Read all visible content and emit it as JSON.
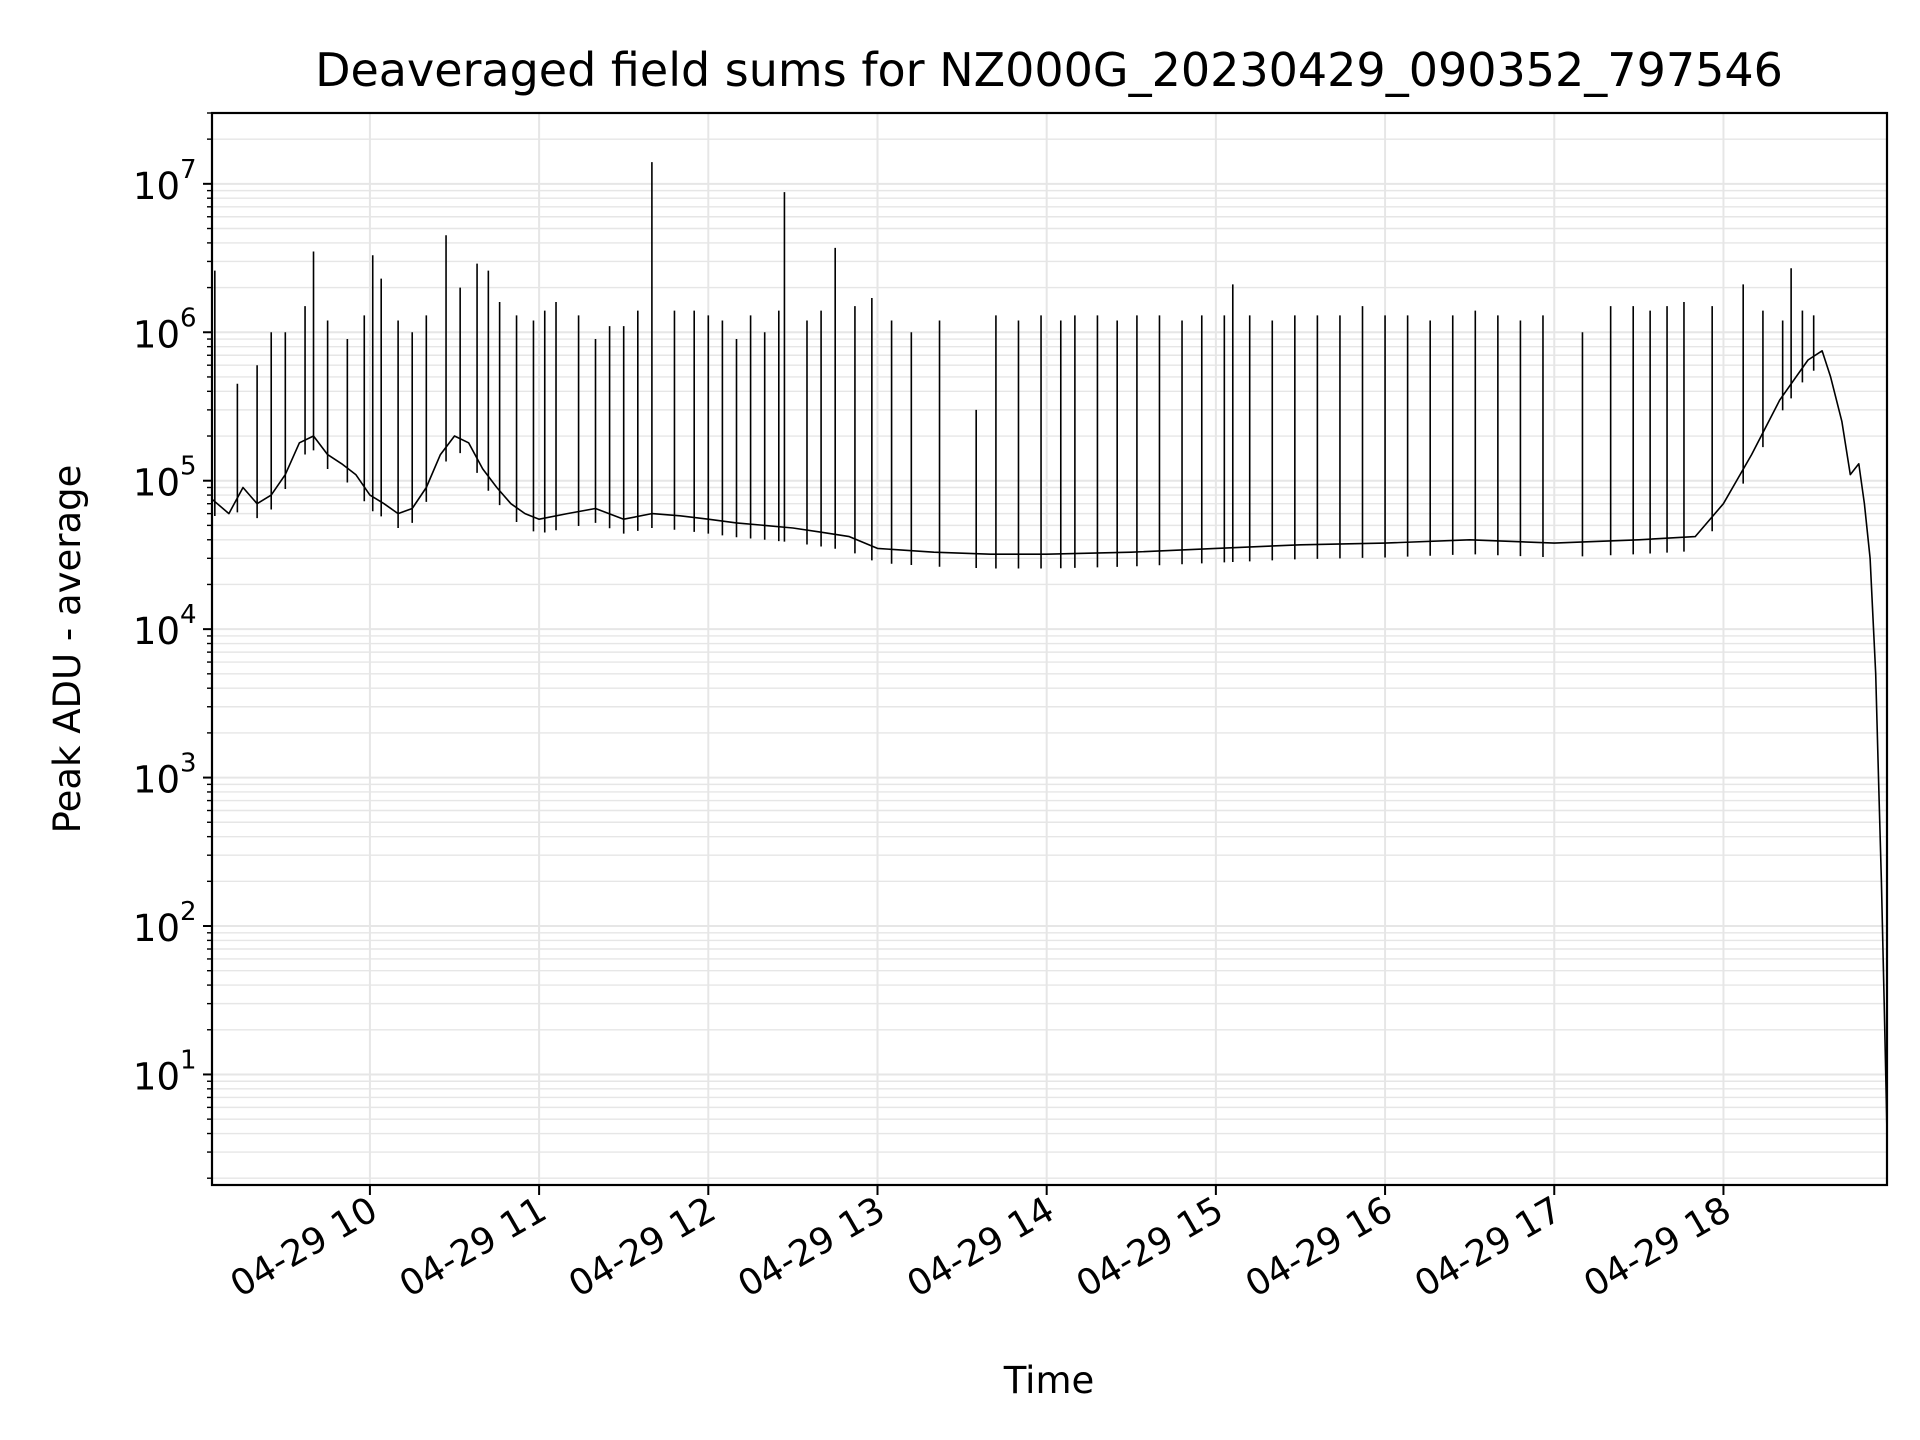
{
  "chart_data": {
    "type": "line",
    "title": "Deaveraged field sums for NZ000G_20230429_090352_797546",
    "xlabel": "Time",
    "ylabel": "Peak ADU - average",
    "x_scale": "time",
    "y_scale": "log",
    "xlim": [
      "2023-04-29 09:04",
      "2023-04-29 18:58"
    ],
    "ylim": [
      1.8,
      30000000
    ],
    "grid": true,
    "line_color": "#000000",
    "grid_color": "#e6e6e6",
    "x_ticks": [
      {
        "value": "2023-04-29 10:00",
        "label": "04-29 10"
      },
      {
        "value": "2023-04-29 11:00",
        "label": "04-29 11"
      },
      {
        "value": "2023-04-29 12:00",
        "label": "04-29 12"
      },
      {
        "value": "2023-04-29 13:00",
        "label": "04-29 13"
      },
      {
        "value": "2023-04-29 14:00",
        "label": "04-29 14"
      },
      {
        "value": "2023-04-29 15:00",
        "label": "04-29 15"
      },
      {
        "value": "2023-04-29 16:00",
        "label": "04-29 16"
      },
      {
        "value": "2023-04-29 17:00",
        "label": "04-29 17"
      },
      {
        "value": "2023-04-29 18:00",
        "label": "04-29 18"
      }
    ],
    "y_ticks": [
      {
        "value": 10,
        "base": "10",
        "exponent": "1"
      },
      {
        "value": 100,
        "base": "10",
        "exponent": "2"
      },
      {
        "value": 1000,
        "base": "10",
        "exponent": "3"
      },
      {
        "value": 10000,
        "base": "10",
        "exponent": "4"
      },
      {
        "value": 100000,
        "base": "10",
        "exponent": "5"
      },
      {
        "value": 1000000,
        "base": "10",
        "exponent": "6"
      },
      {
        "value": 10000000,
        "base": "10",
        "exponent": "7"
      }
    ],
    "series": [
      {
        "values": [
          [
            "2023-04-29 09:04",
            75000
          ],
          [
            "2023-04-29 09:10",
            60000
          ],
          [
            "2023-04-29 09:15",
            90000
          ],
          [
            "2023-04-29 09:20",
            70000
          ],
          [
            "2023-04-29 09:25",
            80000
          ],
          [
            "2023-04-29 09:30",
            110000
          ],
          [
            "2023-04-29 09:35",
            180000
          ],
          [
            "2023-04-29 09:40",
            200000
          ],
          [
            "2023-04-29 09:45",
            150000
          ],
          [
            "2023-04-29 09:50",
            130000
          ],
          [
            "2023-04-29 09:55",
            110000
          ],
          [
            "2023-04-29 10:00",
            80000
          ],
          [
            "2023-04-29 10:05",
            70000
          ],
          [
            "2023-04-29 10:10",
            60000
          ],
          [
            "2023-04-29 10:15",
            65000
          ],
          [
            "2023-04-29 10:20",
            90000
          ],
          [
            "2023-04-29 10:25",
            150000
          ],
          [
            "2023-04-29 10:30",
            200000
          ],
          [
            "2023-04-29 10:35",
            180000
          ],
          [
            "2023-04-29 10:40",
            120000
          ],
          [
            "2023-04-29 10:45",
            90000
          ],
          [
            "2023-04-29 10:50",
            70000
          ],
          [
            "2023-04-29 10:55",
            60000
          ],
          [
            "2023-04-29 11:00",
            55000
          ],
          [
            "2023-04-29 11:10",
            60000
          ],
          [
            "2023-04-29 11:20",
            65000
          ],
          [
            "2023-04-29 11:30",
            55000
          ],
          [
            "2023-04-29 11:40",
            60000
          ],
          [
            "2023-04-29 11:50",
            58000
          ],
          [
            "2023-04-29 12:00",
            55000
          ],
          [
            "2023-04-29 12:10",
            52000
          ],
          [
            "2023-04-29 12:20",
            50000
          ],
          [
            "2023-04-29 12:30",
            48000
          ],
          [
            "2023-04-29 12:40",
            45000
          ],
          [
            "2023-04-29 12:50",
            42000
          ],
          [
            "2023-04-29 13:00",
            35000
          ],
          [
            "2023-04-29 13:20",
            33000
          ],
          [
            "2023-04-29 13:40",
            32000
          ],
          [
            "2023-04-29 14:00",
            32000
          ],
          [
            "2023-04-29 14:30",
            33000
          ],
          [
            "2023-04-29 15:00",
            35000
          ],
          [
            "2023-04-29 15:30",
            37000
          ],
          [
            "2023-04-29 16:00",
            38000
          ],
          [
            "2023-04-29 16:30",
            40000
          ],
          [
            "2023-04-29 17:00",
            38000
          ],
          [
            "2023-04-29 17:30",
            40000
          ],
          [
            "2023-04-29 17:50",
            42000
          ],
          [
            "2023-04-29 18:00",
            70000
          ],
          [
            "2023-04-29 18:10",
            150000
          ],
          [
            "2023-04-29 18:20",
            350000
          ],
          [
            "2023-04-29 18:30",
            650000
          ],
          [
            "2023-04-29 18:35",
            750000
          ],
          [
            "2023-04-29 18:38",
            500000
          ],
          [
            "2023-04-29 18:42",
            250000
          ],
          [
            "2023-04-29 18:45",
            110000
          ],
          [
            "2023-04-29 18:48",
            130000
          ],
          [
            "2023-04-29 18:50",
            70000
          ],
          [
            "2023-04-29 18:52",
            30000
          ],
          [
            "2023-04-29 18:54",
            5000
          ],
          [
            "2023-04-29 18:55",
            1000
          ],
          [
            "2023-04-29 18:56",
            200
          ],
          [
            "2023-04-29 18:57",
            30
          ],
          [
            "2023-04-29 18:58",
            4
          ]
        ]
      }
    ],
    "spikes": [
      [
        "2023-04-29 09:05",
        2600000
      ],
      [
        "2023-04-29 09:13",
        450000
      ],
      [
        "2023-04-29 09:20",
        600000
      ],
      [
        "2023-04-29 09:25",
        1000000
      ],
      [
        "2023-04-29 09:30",
        1000000
      ],
      [
        "2023-04-29 09:37",
        1500000
      ],
      [
        "2023-04-29 09:40",
        3500000
      ],
      [
        "2023-04-29 09:45",
        1200000
      ],
      [
        "2023-04-29 09:52",
        900000
      ],
      [
        "2023-04-29 09:58",
        1300000
      ],
      [
        "2023-04-29 10:01",
        3300000
      ],
      [
        "2023-04-29 10:04",
        2300000
      ],
      [
        "2023-04-29 10:10",
        1200000
      ],
      [
        "2023-04-29 10:15",
        1000000
      ],
      [
        "2023-04-29 10:20",
        1300000
      ],
      [
        "2023-04-29 10:27",
        4500000
      ],
      [
        "2023-04-29 10:32",
        2000000
      ],
      [
        "2023-04-29 10:38",
        2900000
      ],
      [
        "2023-04-29 10:42",
        2600000
      ],
      [
        "2023-04-29 10:46",
        1600000
      ],
      [
        "2023-04-29 10:52",
        1300000
      ],
      [
        "2023-04-29 10:58",
        1200000
      ],
      [
        "2023-04-29 11:02",
        1400000
      ],
      [
        "2023-04-29 11:06",
        1600000
      ],
      [
        "2023-04-29 11:14",
        1300000
      ],
      [
        "2023-04-29 11:20",
        900000
      ],
      [
        "2023-04-29 11:25",
        1100000
      ],
      [
        "2023-04-29 11:30",
        1100000
      ],
      [
        "2023-04-29 11:35",
        1400000
      ],
      [
        "2023-04-29 11:40",
        14000000
      ],
      [
        "2023-04-29 11:48",
        1400000
      ],
      [
        "2023-04-29 11:55",
        1400000
      ],
      [
        "2023-04-29 12:00",
        1300000
      ],
      [
        "2023-04-29 12:05",
        1200000
      ],
      [
        "2023-04-29 12:10",
        900000
      ],
      [
        "2023-04-29 12:15",
        1300000
      ],
      [
        "2023-04-29 12:20",
        1000000
      ],
      [
        "2023-04-29 12:25",
        1400000
      ],
      [
        "2023-04-29 12:27",
        8800000
      ],
      [
        "2023-04-29 12:35",
        1200000
      ],
      [
        "2023-04-29 12:40",
        1400000
      ],
      [
        "2023-04-29 12:45",
        3700000
      ],
      [
        "2023-04-29 12:52",
        1500000
      ],
      [
        "2023-04-29 12:58",
        1700000
      ],
      [
        "2023-04-29 13:05",
        1200000
      ],
      [
        "2023-04-29 13:12",
        1000000
      ],
      [
        "2023-04-29 13:22",
        1200000
      ],
      [
        "2023-04-29 13:35",
        300000
      ],
      [
        "2023-04-29 13:42",
        1300000
      ],
      [
        "2023-04-29 13:50",
        1200000
      ],
      [
        "2023-04-29 13:58",
        1300000
      ],
      [
        "2023-04-29 14:05",
        1200000
      ],
      [
        "2023-04-29 14:10",
        1300000
      ],
      [
        "2023-04-29 14:18",
        1300000
      ],
      [
        "2023-04-29 14:25",
        1200000
      ],
      [
        "2023-04-29 14:32",
        1300000
      ],
      [
        "2023-04-29 14:40",
        1300000
      ],
      [
        "2023-04-29 14:48",
        1200000
      ],
      [
        "2023-04-29 14:55",
        1300000
      ],
      [
        "2023-04-29 15:03",
        1300000
      ],
      [
        "2023-04-29 15:06",
        2100000
      ],
      [
        "2023-04-29 15:12",
        1300000
      ],
      [
        "2023-04-29 15:20",
        1200000
      ],
      [
        "2023-04-29 15:28",
        1300000
      ],
      [
        "2023-04-29 15:36",
        1300000
      ],
      [
        "2023-04-29 15:44",
        1300000
      ],
      [
        "2023-04-29 15:52",
        1500000
      ],
      [
        "2023-04-29 16:00",
        1300000
      ],
      [
        "2023-04-29 16:08",
        1300000
      ],
      [
        "2023-04-29 16:16",
        1200000
      ],
      [
        "2023-04-29 16:24",
        1300000
      ],
      [
        "2023-04-29 16:32",
        1400000
      ],
      [
        "2023-04-29 16:40",
        1300000
      ],
      [
        "2023-04-29 16:48",
        1200000
      ],
      [
        "2023-04-29 16:56",
        1300000
      ],
      [
        "2023-04-29 17:10",
        1000000
      ],
      [
        "2023-04-29 17:20",
        1500000
      ],
      [
        "2023-04-29 17:28",
        1500000
      ],
      [
        "2023-04-29 17:34",
        1400000
      ],
      [
        "2023-04-29 17:40",
        1500000
      ],
      [
        "2023-04-29 17:46",
        1600000
      ],
      [
        "2023-04-29 17:56",
        1500000
      ],
      [
        "2023-04-29 18:07",
        2100000
      ],
      [
        "2023-04-29 18:14",
        1400000
      ],
      [
        "2023-04-29 18:21",
        1200000
      ],
      [
        "2023-04-29 18:24",
        2700000
      ],
      [
        "2023-04-29 18:28",
        1400000
      ],
      [
        "2023-04-29 18:32",
        1300000
      ]
    ]
  }
}
